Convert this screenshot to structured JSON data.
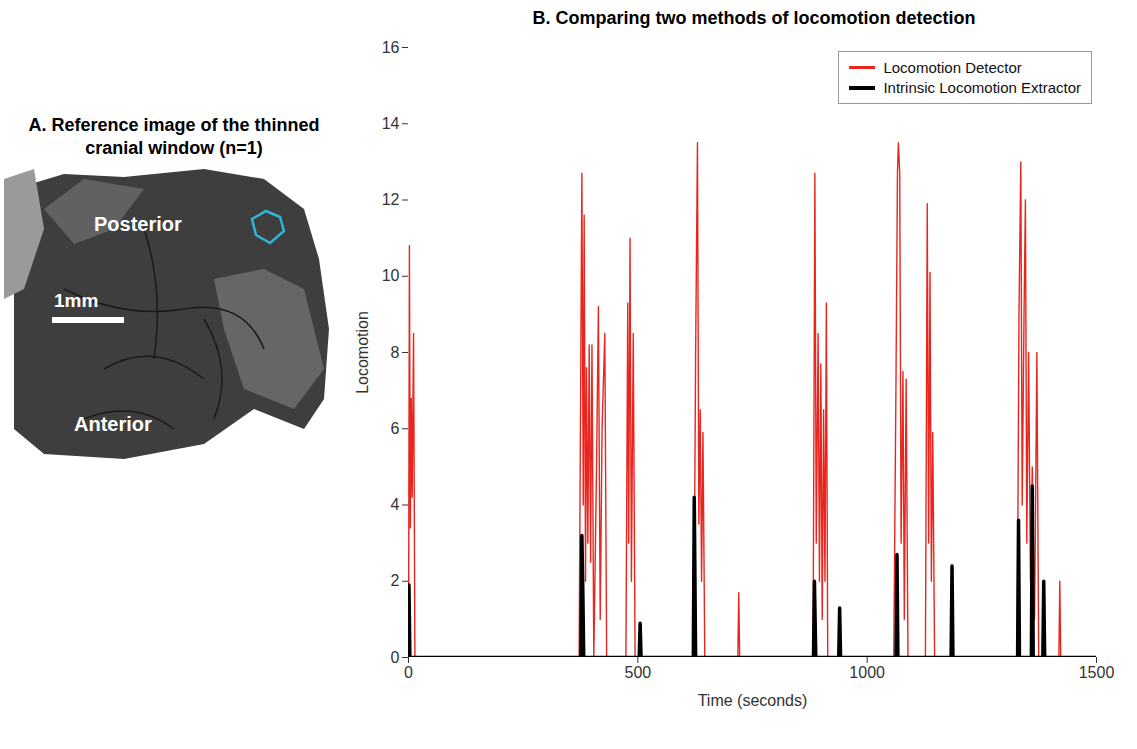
{
  "chart_data": {
    "type": "line",
    "title": "B. Comparing two methods of locomotion detection",
    "x_label": "Time (seconds)",
    "y_label": "Locomotion",
    "xlim": [
      0,
      1500
    ],
    "xticks": [
      0,
      500,
      1000,
      1500
    ],
    "ylim": [
      0,
      16
    ],
    "yticks": [
      0,
      2,
      4,
      6,
      8,
      10,
      12,
      14,
      16
    ],
    "legend": "top-right",
    "series": [
      {
        "name": "Locomotion Detector",
        "color": "#e8261f",
        "line_style": "solid",
        "x": [
          0,
          2,
          4,
          6,
          8,
          11,
          14,
          372,
          378,
          381,
          383,
          386,
          388,
          391,
          394,
          397,
          400,
          404,
          410,
          414,
          418,
          422,
          428,
          432,
          474,
          478,
          480,
          483,
          486,
          490,
          494,
          622,
          626,
          630,
          633,
          636,
          639,
          642,
          646,
          718,
          720,
          722,
          882,
          886,
          889,
          893,
          896,
          899,
          902,
          905,
          908,
          911,
          914,
          1058,
          1063,
          1066,
          1068,
          1071,
          1074,
          1078,
          1081,
          1085,
          1089,
          1127,
          1131,
          1134,
          1137,
          1140,
          1143,
          1147,
          1327,
          1331,
          1335,
          1338,
          1342,
          1345,
          1348,
          1352,
          1356,
          1360,
          1365,
          1370,
          1374,
          1418,
          1420,
          1422,
          1500
        ],
        "values": [
          0,
          10.8,
          3.4,
          6.8,
          4.2,
          8.5,
          0,
          0,
          12.7,
          4,
          11.6,
          2,
          7.6,
          3,
          8.2,
          2.5,
          8.2,
          0,
          5,
          9.2,
          1,
          6,
          8.5,
          0,
          0,
          9.3,
          3,
          11,
          2,
          8.5,
          0,
          0,
          8,
          13.5,
          3.5,
          6.5,
          2,
          5.9,
          0,
          0,
          1.7,
          0,
          0,
          12.7,
          3,
          8.5,
          2,
          7.7,
          1,
          6.5,
          2,
          9.3,
          0,
          0,
          7.5,
          12.7,
          13.5,
          12.7,
          3,
          7.5,
          1,
          7.3,
          0,
          0,
          11.9,
          3,
          10.1,
          2,
          5.9,
          0,
          0,
          9,
          13,
          4,
          9,
          12,
          3,
          8,
          2,
          5,
          1,
          8,
          0,
          0,
          2,
          0,
          0
        ]
      },
      {
        "name": "Intrinsic Locomotion Extractor",
        "color": "#000000",
        "line_style": "solid",
        "x": [
          0,
          1,
          3,
          376,
          378,
          380,
          382,
          503,
          505,
          507,
          621,
          623,
          626,
          883,
          885,
          888,
          938,
          940,
          942,
          1063,
          1065,
          1067,
          1183,
          1185,
          1187,
          1328,
          1330,
          1332,
          1358,
          1360,
          1362,
          1383,
          1385,
          1387,
          1500
        ],
        "values": [
          0,
          1.9,
          0,
          0,
          3.2,
          1.8,
          0,
          0,
          0.9,
          0,
          0,
          4.2,
          0,
          0,
          2,
          0,
          0,
          1.3,
          0,
          0,
          2.7,
          0,
          0,
          2.4,
          0,
          0,
          3.6,
          0,
          0,
          4.5,
          0,
          0,
          2,
          0,
          0
        ]
      }
    ]
  },
  "panel_a": {
    "title": "A. Reference image of the thinned cranial window (n=1)",
    "labels": [
      "Posterior",
      "Anterior"
    ],
    "scale_bar": "1mm"
  }
}
